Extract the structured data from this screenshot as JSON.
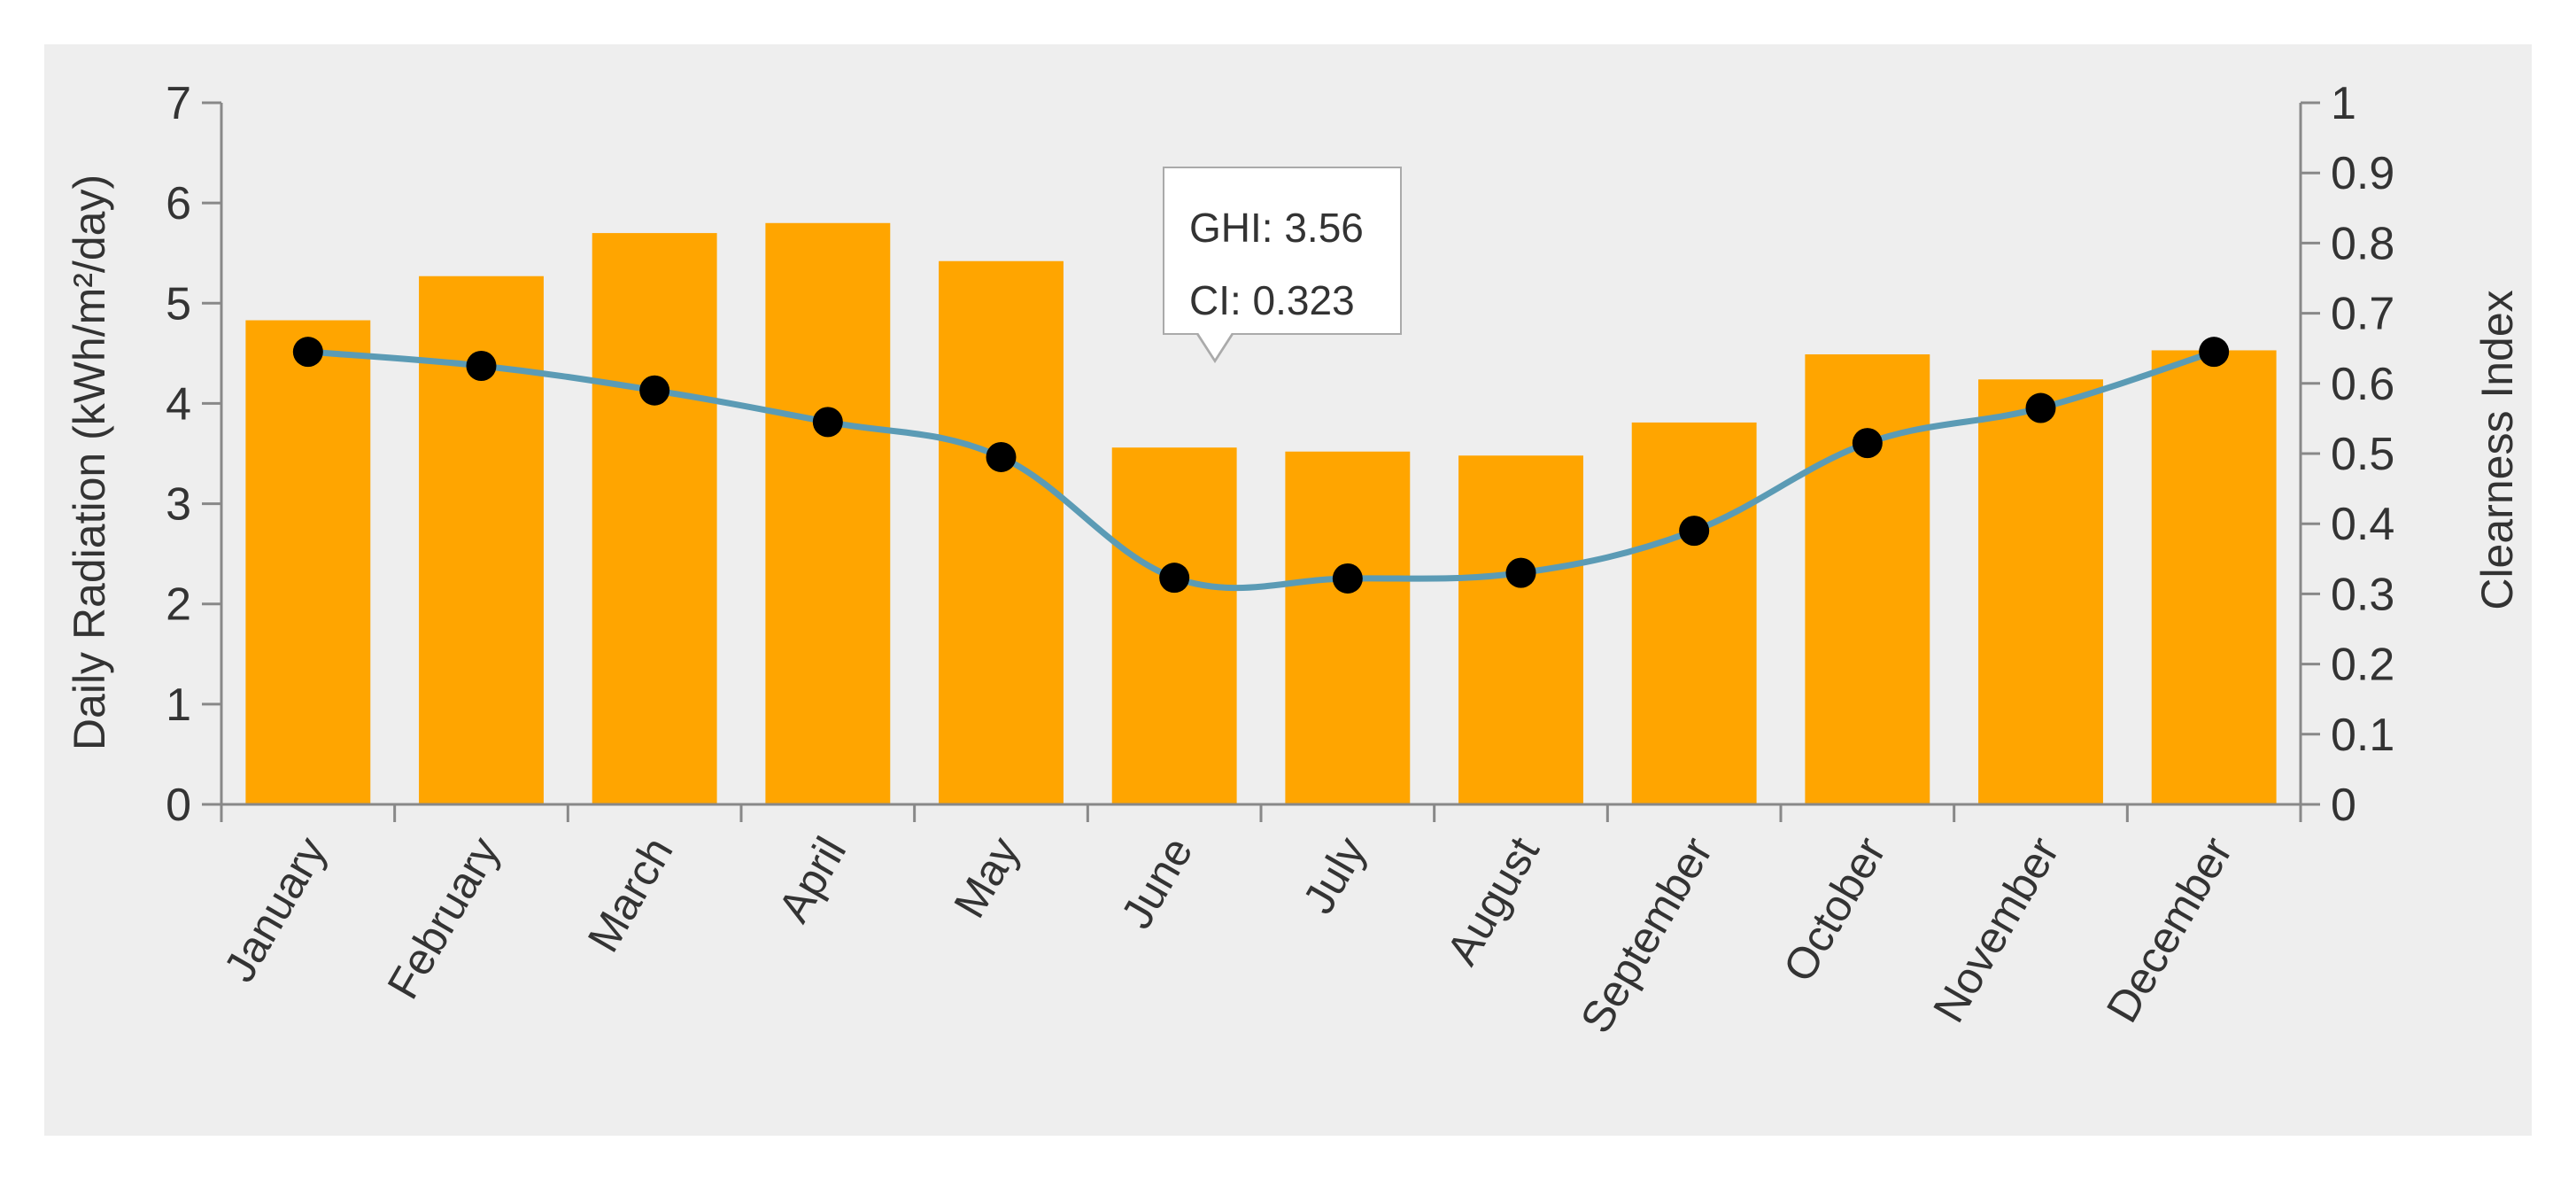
{
  "chart_data": {
    "type": "bar",
    "categories": [
      "January",
      "February",
      "March",
      "April",
      "May",
      "June",
      "July",
      "August",
      "September",
      "October",
      "November",
      "December"
    ],
    "series": [
      {
        "name": "GHI",
        "type": "bar",
        "axis": "left",
        "values": [
          4.83,
          5.27,
          5.7,
          5.8,
          5.42,
          3.56,
          3.52,
          3.48,
          3.81,
          4.49,
          4.24,
          4.53
        ]
      },
      {
        "name": "CI",
        "type": "line",
        "axis": "right",
        "values": [
          0.645,
          0.625,
          0.59,
          0.545,
          0.495,
          0.323,
          0.322,
          0.33,
          0.39,
          0.515,
          0.565,
          0.645
        ]
      }
    ],
    "ylabel": "Daily Radiation (kWh/m²/day)",
    "ylim": [
      0,
      7
    ],
    "yticks": [
      "0",
      "1",
      "2",
      "3",
      "4",
      "5",
      "6",
      "7"
    ],
    "y2label": "Clearness Index",
    "y2lim": [
      0,
      1
    ],
    "y2ticks": [
      "0",
      "0.1",
      "0.2",
      "0.3",
      "0.4",
      "0.5",
      "0.6",
      "0.7",
      "0.8",
      "0.9",
      "1"
    ],
    "colors": {
      "bar": "#FFA500",
      "line": "#5B9BB5",
      "marker": "#000000",
      "axis": "#888888"
    }
  },
  "tooltip": {
    "ghi": "GHI: 3.56",
    "ci": "CI: 0.323"
  }
}
